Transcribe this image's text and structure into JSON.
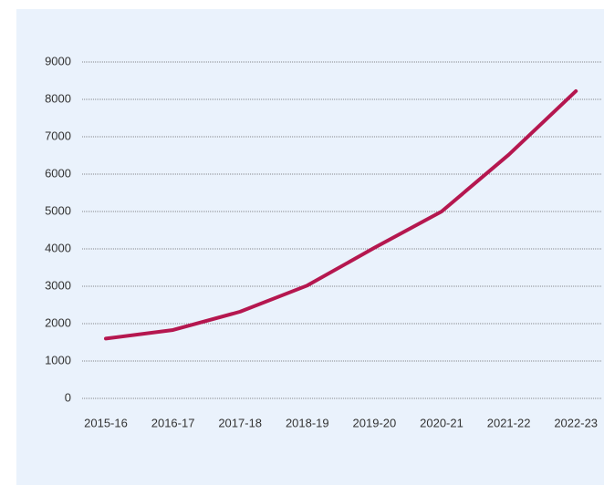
{
  "chart_data": {
    "type": "line",
    "categories": [
      "2015-16",
      "2016-17",
      "2017-18",
      "2018-19",
      "2019-20",
      "2020-21",
      "2021-22",
      "2022-23"
    ],
    "series": [
      {
        "name": null,
        "color": "#b5174f",
        "values": [
          1600,
          1830,
          2320,
          3020,
          4030,
          5000,
          6520,
          8220
        ]
      }
    ],
    "ylim": [
      0,
      9000
    ],
    "yticks": [
      0,
      1000,
      2000,
      3000,
      4000,
      5000,
      6000,
      7000,
      8000,
      9000
    ],
    "grid": true
  }
}
